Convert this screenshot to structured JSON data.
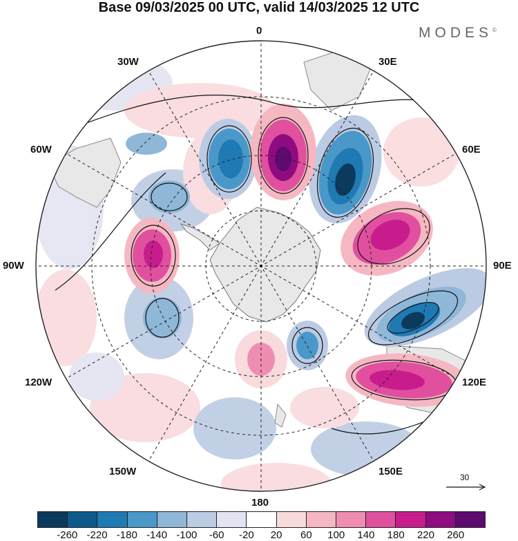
{
  "title": "Base 09/03/2025 00 UTC, valid 14/03/2025 12 UTC",
  "brand": "MODES",
  "brand_mark": "©",
  "meridian_labels": {
    "m0": "0",
    "m30e": "30E",
    "m60e": "60E",
    "m90e": "90E",
    "m120e": "120E",
    "m150e": "150E",
    "m180": "180",
    "m150w": "150W",
    "m120w": "120W",
    "m90w": "90W",
    "m60w": "60W",
    "m30w": "30W"
  },
  "reference_vector": {
    "label": "30",
    "icon": "arrow-right-icon"
  },
  "colorbar": {
    "colors": [
      "#0b3a5c",
      "#0d5a8a",
      "#1f7ab4",
      "#4a98c9",
      "#8fb7d8",
      "#bccbe4",
      "#e3e4f1",
      "#ffffff",
      "#f9dadd",
      "#f5b8c3",
      "#ef8cb1",
      "#e0509f",
      "#c81c8d",
      "#8e0c7f",
      "#5e0a6f"
    ],
    "ticks": [
      "-260",
      "-220",
      "-180",
      "-140",
      "-100",
      "-60",
      "-20",
      "20",
      "60",
      "100",
      "140",
      "180",
      "220",
      "260"
    ]
  },
  "anomalies": [
    {
      "name": "blob-neg-1",
      "value": -260
    },
    {
      "name": "blob-neg-2",
      "value": -260
    },
    {
      "name": "blob-pos-1",
      "value": 260
    },
    {
      "name": "blob-pos-2",
      "value": 220
    },
    {
      "name": "blob-pos-3",
      "value": 220
    },
    {
      "name": "blob-pos-4",
      "value": 180
    }
  ]
}
